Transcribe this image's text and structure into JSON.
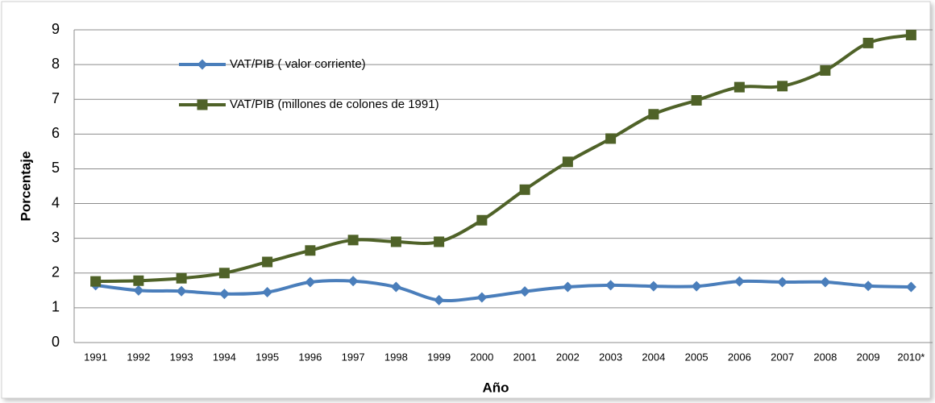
{
  "chart_data": {
    "type": "line",
    "categories": [
      "1991",
      "1992",
      "1993",
      "1994",
      "1995",
      "1996",
      "1997",
      "1998",
      "1999",
      "2000",
      "2001",
      "2002",
      "2003",
      "2004",
      "2005",
      "2006",
      "2007",
      "2008",
      "2009",
      "2010*"
    ],
    "series": [
      {
        "name": "VAT/PIB ( valor corriente)",
        "color": "#4a7ebb",
        "marker": "diamond",
        "values": [
          1.65,
          1.5,
          1.48,
          1.4,
          1.45,
          1.74,
          1.77,
          1.6,
          1.22,
          1.3,
          1.47,
          1.6,
          1.65,
          1.62,
          1.62,
          1.76,
          1.74,
          1.74,
          1.63,
          1.6
        ]
      },
      {
        "name": "VAT/PIB (millones de colones de 1991)",
        "color": "#4f6228",
        "marker": "square",
        "values": [
          1.76,
          1.78,
          1.85,
          2.0,
          2.32,
          2.65,
          2.95,
          2.9,
          2.9,
          3.52,
          4.4,
          5.2,
          5.87,
          6.57,
          6.97,
          7.35,
          7.38,
          7.83,
          8.62,
          8.85
        ]
      }
    ],
    "ylim": [
      0,
      9
    ],
    "yticks": [
      0,
      1,
      2,
      3,
      4,
      5,
      6,
      7,
      8,
      9
    ],
    "xlabel": "Año",
    "ylabel": "Porcentaje",
    "grid": true,
    "legend": "upper left"
  }
}
